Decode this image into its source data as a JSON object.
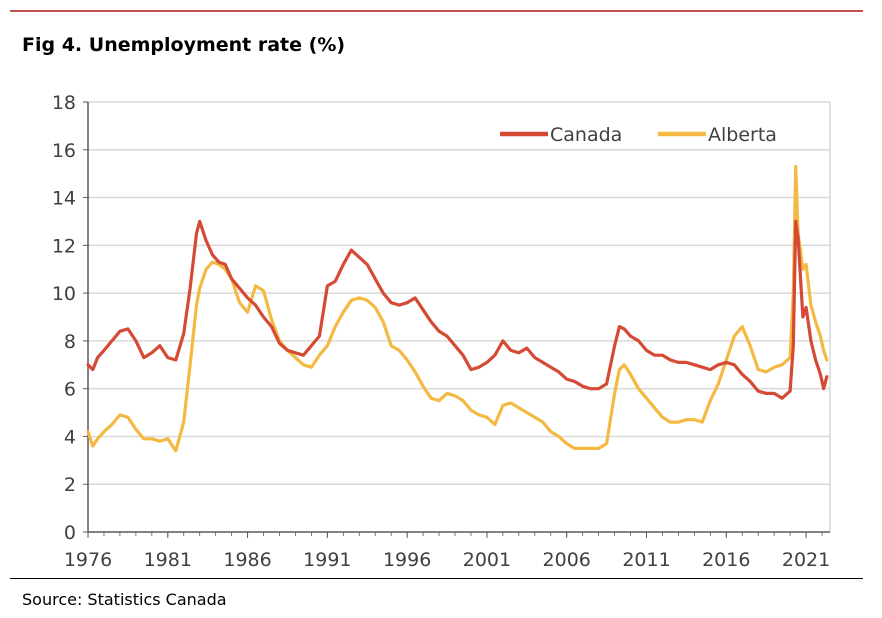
{
  "title": "Fig 4. Unemployment rate (%)",
  "source": "Source: Statistics Canada",
  "colors": {
    "rule": "#c0504d",
    "canada": "#d44a34",
    "alberta": "#f4b942",
    "grid": "#d9d9d9",
    "axis": "#595959"
  },
  "chart_data": {
    "type": "line",
    "title": "Fig 4. Unemployment rate (%)",
    "xlabel": "",
    "ylabel": "",
    "xlim": [
      1976,
      2022.5
    ],
    "ylim": [
      0,
      18
    ],
    "x_ticks": [
      1976,
      1981,
      1986,
      1991,
      1996,
      2001,
      2006,
      2011,
      2016,
      2021
    ],
    "y_ticks": [
      0,
      2,
      4,
      6,
      8,
      10,
      12,
      14,
      16,
      18
    ],
    "grid": "horizontal",
    "legend_position": "top-right",
    "series": [
      {
        "name": "Canada",
        "color": "#d44a34",
        "points": [
          [
            1976.0,
            7.0
          ],
          [
            1976.3,
            6.8
          ],
          [
            1976.6,
            7.3
          ],
          [
            1977.0,
            7.6
          ],
          [
            1977.5,
            8.0
          ],
          [
            1978.0,
            8.4
          ],
          [
            1978.5,
            8.5
          ],
          [
            1979.0,
            8.0
          ],
          [
            1979.5,
            7.3
          ],
          [
            1980.0,
            7.5
          ],
          [
            1980.5,
            7.8
          ],
          [
            1981.0,
            7.3
          ],
          [
            1981.5,
            7.2
          ],
          [
            1982.0,
            8.3
          ],
          [
            1982.4,
            10.2
          ],
          [
            1982.8,
            12.5
          ],
          [
            1983.0,
            13.0
          ],
          [
            1983.4,
            12.2
          ],
          [
            1983.8,
            11.6
          ],
          [
            1984.2,
            11.3
          ],
          [
            1984.6,
            11.2
          ],
          [
            1985.0,
            10.6
          ],
          [
            1985.5,
            10.2
          ],
          [
            1986.0,
            9.8
          ],
          [
            1986.5,
            9.5
          ],
          [
            1987.0,
            9.0
          ],
          [
            1987.5,
            8.6
          ],
          [
            1988.0,
            7.9
          ],
          [
            1988.5,
            7.6
          ],
          [
            1989.0,
            7.5
          ],
          [
            1989.5,
            7.4
          ],
          [
            1990.0,
            7.8
          ],
          [
            1990.5,
            8.2
          ],
          [
            1991.0,
            10.3
          ],
          [
            1991.5,
            10.5
          ],
          [
            1992.0,
            11.2
          ],
          [
            1992.5,
            11.8
          ],
          [
            1993.0,
            11.5
          ],
          [
            1993.5,
            11.2
          ],
          [
            1994.0,
            10.6
          ],
          [
            1994.5,
            10.0
          ],
          [
            1995.0,
            9.6
          ],
          [
            1995.5,
            9.5
          ],
          [
            1996.0,
            9.6
          ],
          [
            1996.5,
            9.8
          ],
          [
            1997.0,
            9.3
          ],
          [
            1997.5,
            8.8
          ],
          [
            1998.0,
            8.4
          ],
          [
            1998.5,
            8.2
          ],
          [
            1999.0,
            7.8
          ],
          [
            1999.5,
            7.4
          ],
          [
            2000.0,
            6.8
          ],
          [
            2000.5,
            6.9
          ],
          [
            2001.0,
            7.1
          ],
          [
            2001.5,
            7.4
          ],
          [
            2002.0,
            8.0
          ],
          [
            2002.5,
            7.6
          ],
          [
            2003.0,
            7.5
          ],
          [
            2003.5,
            7.7
          ],
          [
            2004.0,
            7.3
          ],
          [
            2004.5,
            7.1
          ],
          [
            2005.0,
            6.9
          ],
          [
            2005.5,
            6.7
          ],
          [
            2006.0,
            6.4
          ],
          [
            2006.5,
            6.3
          ],
          [
            2007.0,
            6.1
          ],
          [
            2007.5,
            6.0
          ],
          [
            2008.0,
            6.0
          ],
          [
            2008.5,
            6.2
          ],
          [
            2009.0,
            7.8
          ],
          [
            2009.3,
            8.6
          ],
          [
            2009.6,
            8.5
          ],
          [
            2010.0,
            8.2
          ],
          [
            2010.5,
            8.0
          ],
          [
            2011.0,
            7.6
          ],
          [
            2011.5,
            7.4
          ],
          [
            2012.0,
            7.4
          ],
          [
            2012.5,
            7.2
          ],
          [
            2013.0,
            7.1
          ],
          [
            2013.5,
            7.1
          ],
          [
            2014.0,
            7.0
          ],
          [
            2014.5,
            6.9
          ],
          [
            2015.0,
            6.8
          ],
          [
            2015.5,
            7.0
          ],
          [
            2016.0,
            7.1
          ],
          [
            2016.5,
            7.0
          ],
          [
            2017.0,
            6.6
          ],
          [
            2017.5,
            6.3
          ],
          [
            2018.0,
            5.9
          ],
          [
            2018.5,
            5.8
          ],
          [
            2019.0,
            5.8
          ],
          [
            2019.5,
            5.6
          ],
          [
            2020.0,
            5.9
          ],
          [
            2020.2,
            7.8
          ],
          [
            2020.35,
            13.0
          ],
          [
            2020.5,
            12.3
          ],
          [
            2020.8,
            9.0
          ],
          [
            2021.0,
            9.4
          ],
          [
            2021.3,
            8.0
          ],
          [
            2021.6,
            7.2
          ],
          [
            2021.9,
            6.6
          ],
          [
            2022.1,
            6.0
          ],
          [
            2022.3,
            6.5
          ]
        ]
      },
      {
        "name": "Alberta",
        "color": "#f4b942",
        "points": [
          [
            1976.0,
            4.2
          ],
          [
            1976.3,
            3.6
          ],
          [
            1976.6,
            3.9
          ],
          [
            1977.0,
            4.2
          ],
          [
            1977.5,
            4.5
          ],
          [
            1978.0,
            4.9
          ],
          [
            1978.5,
            4.8
          ],
          [
            1979.0,
            4.3
          ],
          [
            1979.5,
            3.9
          ],
          [
            1980.0,
            3.9
          ],
          [
            1980.5,
            3.8
          ],
          [
            1981.0,
            3.9
          ],
          [
            1981.5,
            3.4
          ],
          [
            1982.0,
            4.6
          ],
          [
            1982.4,
            7.0
          ],
          [
            1982.8,
            9.5
          ],
          [
            1983.0,
            10.2
          ],
          [
            1983.4,
            11.0
          ],
          [
            1983.8,
            11.3
          ],
          [
            1984.2,
            11.2
          ],
          [
            1984.6,
            11.0
          ],
          [
            1985.0,
            10.6
          ],
          [
            1985.5,
            9.6
          ],
          [
            1986.0,
            9.2
          ],
          [
            1986.5,
            10.3
          ],
          [
            1987.0,
            10.1
          ],
          [
            1987.5,
            8.9
          ],
          [
            1988.0,
            8.0
          ],
          [
            1988.5,
            7.6
          ],
          [
            1989.0,
            7.3
          ],
          [
            1989.5,
            7.0
          ],
          [
            1990.0,
            6.9
          ],
          [
            1990.5,
            7.4
          ],
          [
            1991.0,
            7.8
          ],
          [
            1991.5,
            8.6
          ],
          [
            1992.0,
            9.2
          ],
          [
            1992.5,
            9.7
          ],
          [
            1993.0,
            9.8
          ],
          [
            1993.5,
            9.7
          ],
          [
            1994.0,
            9.4
          ],
          [
            1994.5,
            8.8
          ],
          [
            1995.0,
            7.8
          ],
          [
            1995.5,
            7.6
          ],
          [
            1996.0,
            7.2
          ],
          [
            1996.5,
            6.7
          ],
          [
            1997.0,
            6.1
          ],
          [
            1997.5,
            5.6
          ],
          [
            1998.0,
            5.5
          ],
          [
            1998.5,
            5.8
          ],
          [
            1999.0,
            5.7
          ],
          [
            1999.5,
            5.5
          ],
          [
            2000.0,
            5.1
          ],
          [
            2000.5,
            4.9
          ],
          [
            2001.0,
            4.8
          ],
          [
            2001.5,
            4.5
          ],
          [
            2002.0,
            5.3
          ],
          [
            2002.5,
            5.4
          ],
          [
            2003.0,
            5.2
          ],
          [
            2003.5,
            5.0
          ],
          [
            2004.0,
            4.8
          ],
          [
            2004.5,
            4.6
          ],
          [
            2005.0,
            4.2
          ],
          [
            2005.5,
            4.0
          ],
          [
            2006.0,
            3.7
          ],
          [
            2006.5,
            3.5
          ],
          [
            2007.0,
            3.5
          ],
          [
            2007.5,
            3.5
          ],
          [
            2008.0,
            3.5
          ],
          [
            2008.5,
            3.7
          ],
          [
            2009.0,
            5.8
          ],
          [
            2009.3,
            6.8
          ],
          [
            2009.6,
            7.0
          ],
          [
            2010.0,
            6.6
          ],
          [
            2010.5,
            6.0
          ],
          [
            2011.0,
            5.6
          ],
          [
            2011.5,
            5.2
          ],
          [
            2012.0,
            4.8
          ],
          [
            2012.5,
            4.6
          ],
          [
            2013.0,
            4.6
          ],
          [
            2013.5,
            4.7
          ],
          [
            2014.0,
            4.7
          ],
          [
            2014.5,
            4.6
          ],
          [
            2015.0,
            5.5
          ],
          [
            2015.5,
            6.2
          ],
          [
            2016.0,
            7.2
          ],
          [
            2016.5,
            8.2
          ],
          [
            2017.0,
            8.6
          ],
          [
            2017.5,
            7.8
          ],
          [
            2018.0,
            6.8
          ],
          [
            2018.5,
            6.7
          ],
          [
            2019.0,
            6.9
          ],
          [
            2019.5,
            7.0
          ],
          [
            2020.0,
            7.3
          ],
          [
            2020.2,
            10.0
          ],
          [
            2020.35,
            15.3
          ],
          [
            2020.5,
            12.5
          ],
          [
            2020.8,
            11.0
          ],
          [
            2021.0,
            11.2
          ],
          [
            2021.3,
            9.5
          ],
          [
            2021.6,
            8.8
          ],
          [
            2021.9,
            8.2
          ],
          [
            2022.1,
            7.6
          ],
          [
            2022.3,
            7.2
          ]
        ]
      }
    ]
  }
}
